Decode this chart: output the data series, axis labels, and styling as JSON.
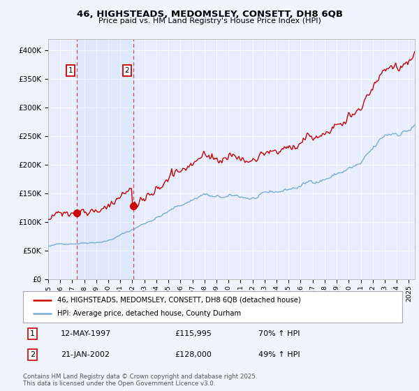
{
  "title_line1": "46, HIGHSTEADS, MEDOMSLEY, CONSETT, DH8 6QB",
  "title_line2": "Price paid vs. HM Land Registry's House Price Index (HPI)",
  "ylim": [
    0,
    420000
  ],
  "yticks": [
    0,
    50000,
    100000,
    150000,
    200000,
    250000,
    300000,
    350000,
    400000
  ],
  "ytick_labels": [
    "£0",
    "£50K",
    "£100K",
    "£150K",
    "£200K",
    "£250K",
    "£300K",
    "£350K",
    "£400K"
  ],
  "background_color": "#f0f4ff",
  "plot_bg_color": "#e8eeff",
  "red_color": "#cc0000",
  "blue_color": "#7aadd4",
  "sale1_date_num": 1997.36,
  "sale1_price": 115995,
  "sale2_date_num": 2002.06,
  "sale2_price": 128000,
  "legend_line1": "46, HIGHSTEADS, MEDOMSLEY, CONSETT, DH8 6QB (detached house)",
  "legend_line2": "HPI: Average price, detached house, County Durham",
  "table_rows": [
    {
      "num": "1",
      "date": "12-MAY-1997",
      "price": "£115,995",
      "hpi": "70% ↑ HPI"
    },
    {
      "num": "2",
      "date": "21-JAN-2002",
      "price": "£128,000",
      "hpi": "49% ↑ HPI"
    }
  ],
  "footnote": "Contains HM Land Registry data © Crown copyright and database right 2025.\nThis data is licensed under the Open Government Licence v3.0.",
  "xmin": 1995.0,
  "xmax": 2025.5
}
